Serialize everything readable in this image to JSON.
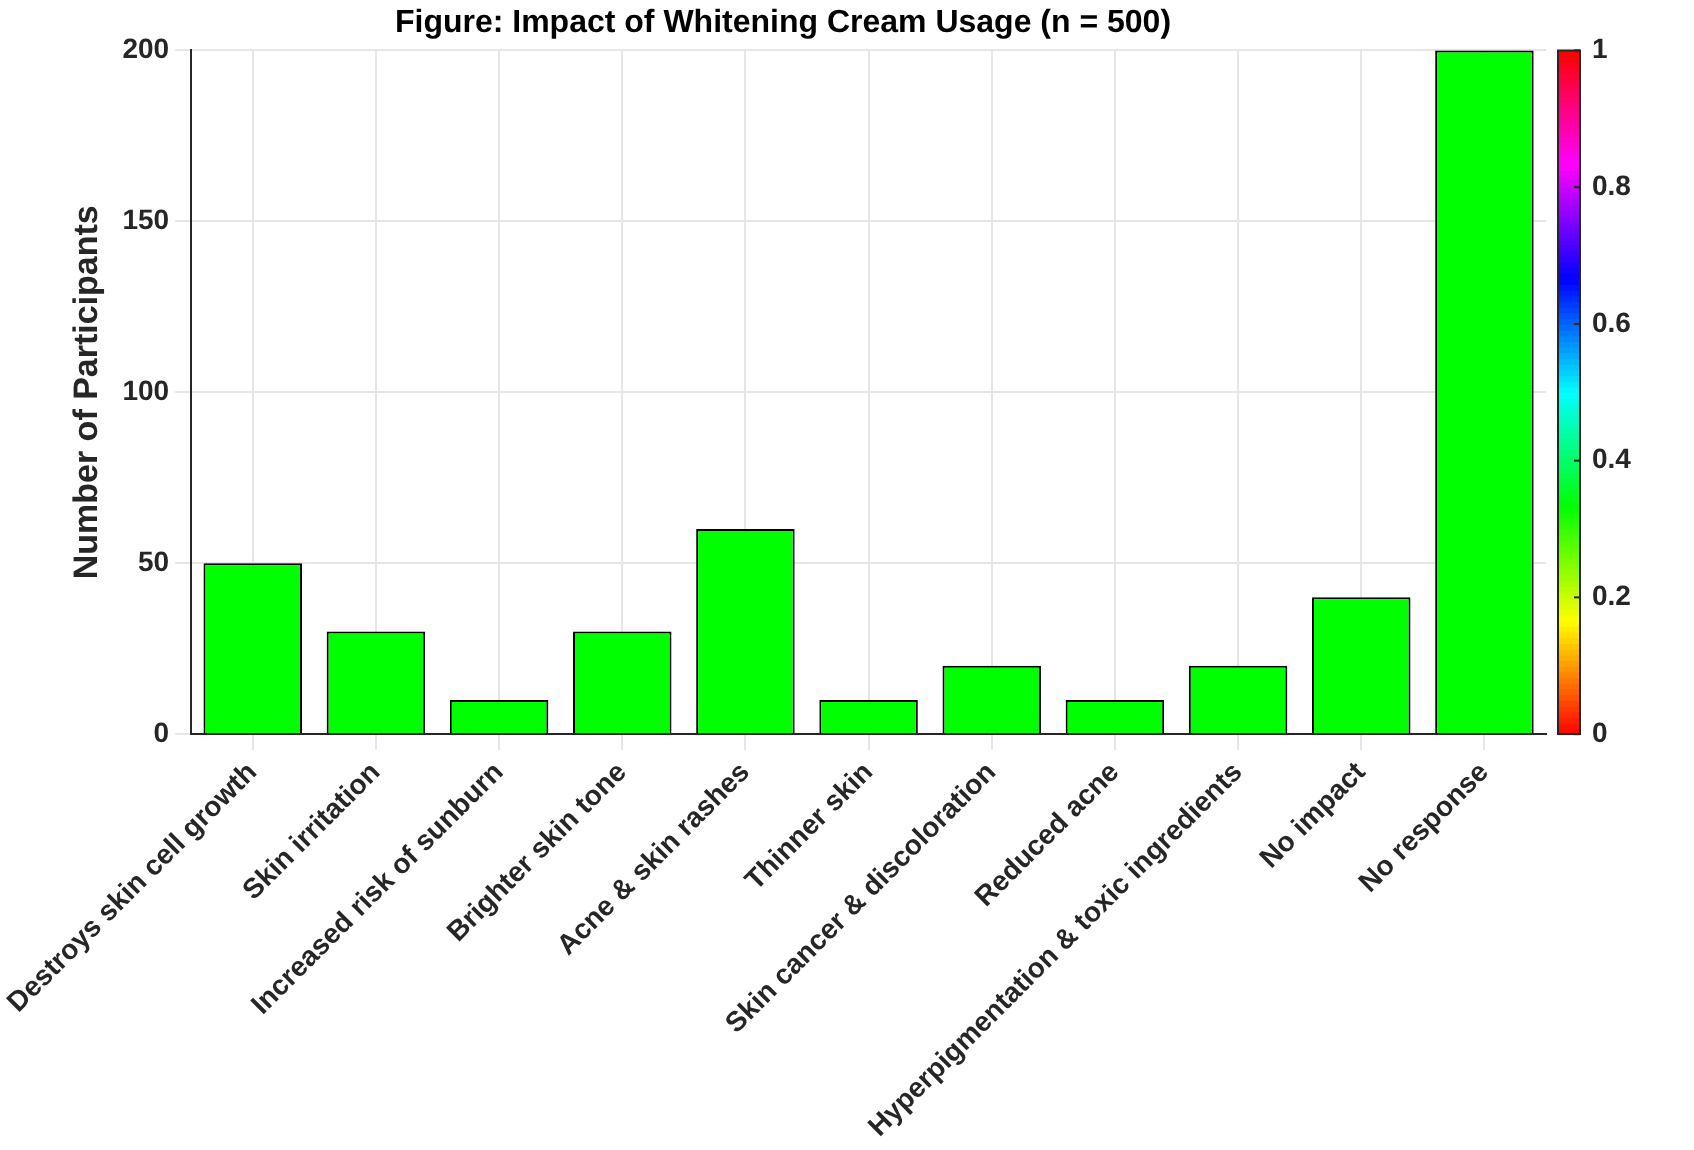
{
  "chart_data": {
    "type": "bar",
    "title": "Figure: Impact of Whitening Cream Usage (n = 500)",
    "ylabel": "Number of Participants",
    "categories": [
      "Destroys skin cell growth",
      "Skin irritation",
      "Increased risk of sunburn",
      "Brighter skin tone",
      "Acne & skin rashes",
      "Thinner skin",
      "Skin cancer & discoloration",
      "Reduced acne",
      "Hyperpigmentation & toxic ingredients",
      "No impact",
      "No response"
    ],
    "values": [
      50,
      30,
      10,
      30,
      60,
      10,
      20,
      10,
      20,
      40,
      200
    ],
    "color": "#00ff00",
    "ylim": [
      0,
      200
    ],
    "yticks": [
      0,
      50,
      100,
      150,
      200
    ],
    "clim": [
      0,
      1
    ],
    "cticks": [
      0,
      0.2,
      0.4,
      0.6,
      0.8,
      1
    ],
    "grid": true
  }
}
